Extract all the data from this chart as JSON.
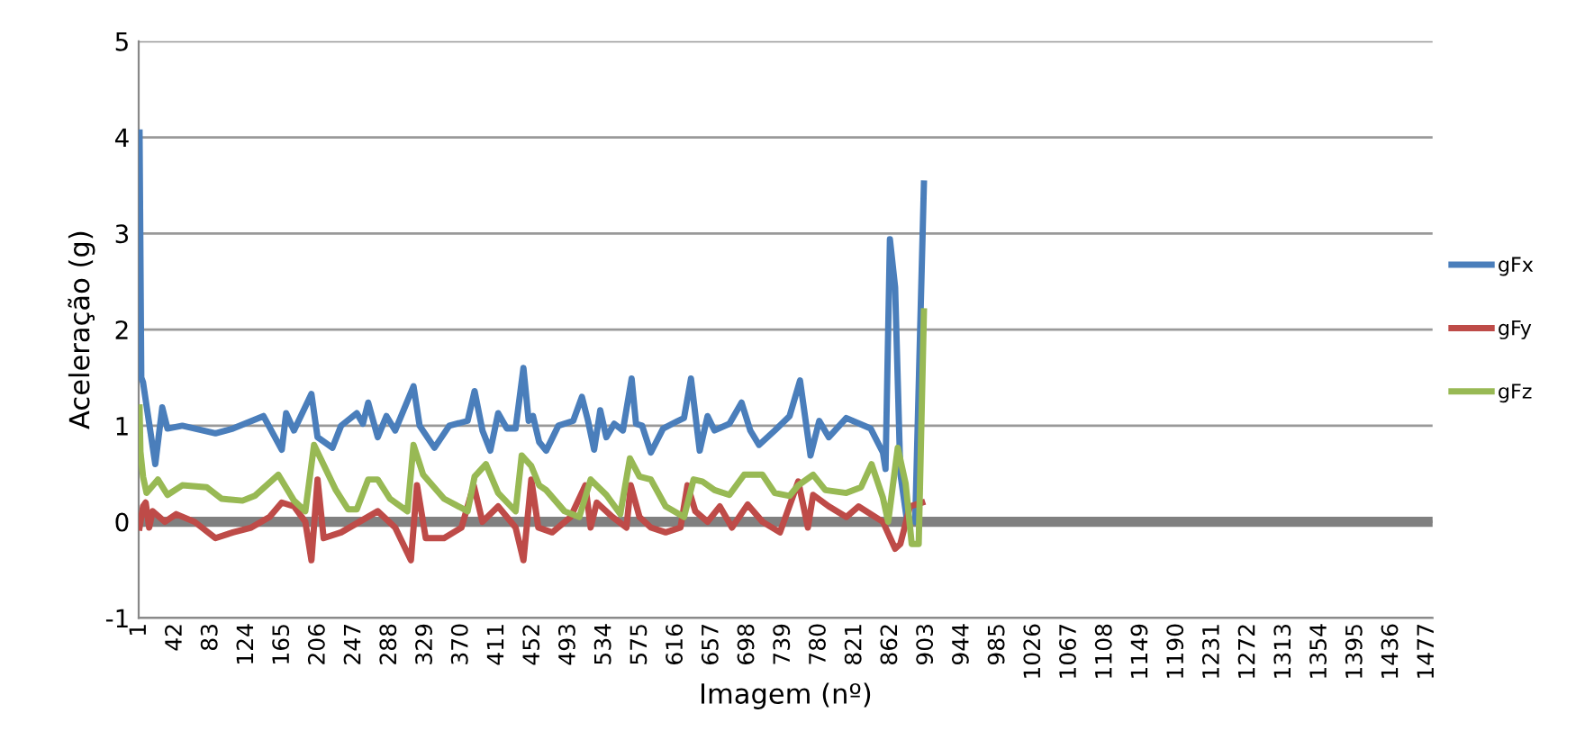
{
  "chart_data": {
    "type": "line",
    "xlabel": "Imagem (nº)",
    "ylabel": "Aceleração (g)",
    "xlim": [
      0,
      1483
    ],
    "xticks": [
      1,
      42,
      83,
      124,
      165,
      206,
      247,
      288,
      329,
      370,
      411,
      452,
      493,
      534,
      575,
      616,
      657,
      698,
      739,
      780,
      821,
      862,
      903,
      944,
      985,
      1026,
      1067,
      1108,
      1149,
      1190,
      1231,
      1272,
      1313,
      1354,
      1395,
      1436,
      1477
    ],
    "ylim": [
      -1,
      5
    ],
    "yticks": [
      -1,
      0,
      1,
      2,
      3,
      4,
      5
    ],
    "grid": "y",
    "legend": "right",
    "line_style": "solid",
    "marker": "none",
    "ref_lines": [
      {
        "axis": "y",
        "value": 0,
        "color": "#808080"
      }
    ],
    "series": [
      {
        "name": "gFx",
        "color": "#4a7ebb",
        "x": [
          1,
          3,
          5,
          19,
          27,
          33,
          50,
          88,
          108,
          143,
          164,
          169,
          178,
          198,
          205,
          222,
          232,
          250,
          257,
          263,
          274,
          284,
          294,
          315,
          322,
          339,
          356,
          377,
          385,
          394,
          403,
          412,
          422,
          432,
          441,
          447,
          452,
          459,
          467,
          481,
          498,
          508,
          515,
          522,
          529,
          536,
          545,
          555,
          565,
          570,
          577,
          587,
          601,
          618,
          625,
          633,
          643,
          652,
          660,
          677,
          691,
          701,
          711,
          729,
          746,
          758,
          770,
          780,
          791,
          811,
          839,
          853,
          856,
          861,
          867,
          873,
          880,
          890,
          900
        ],
        "values": [
          4.05,
          1.5,
          1.45,
          0.6,
          1.19,
          0.97,
          1.0,
          0.92,
          0.97,
          1.1,
          0.75,
          1.13,
          0.95,
          1.33,
          0.88,
          0.77,
          1.0,
          1.13,
          1.02,
          1.24,
          0.88,
          1.1,
          0.95,
          1.41,
          1.0,
          0.77,
          1.0,
          1.05,
          1.36,
          0.95,
          0.74,
          1.13,
          0.97,
          0.97,
          1.6,
          1.05,
          1.1,
          0.83,
          0.74,
          1.0,
          1.05,
          1.3,
          1.05,
          0.75,
          1.16,
          0.88,
          1.02,
          0.95,
          1.49,
          1.02,
          1.0,
          0.72,
          0.97,
          1.05,
          1.08,
          1.49,
          0.74,
          1.1,
          0.95,
          1.02,
          1.24,
          0.95,
          0.8,
          0.95,
          1.1,
          1.47,
          0.69,
          1.05,
          0.88,
          1.08,
          0.97,
          0.72,
          0.55,
          2.94,
          2.44,
          0.5,
          0.05,
          0.0,
          3.52
        ]
      },
      {
        "name": "gFy",
        "color": "#be4b48",
        "x": [
          1,
          5,
          8,
          12,
          16,
          30,
          43,
          64,
          88,
          108,
          129,
          150,
          164,
          178,
          191,
          198,
          205,
          212,
          232,
          253,
          274,
          294,
          312,
          319,
          329,
          350,
          370,
          384,
          394,
          412,
          432,
          441,
          450,
          458,
          474,
          495,
          512,
          518,
          525,
          543,
          559,
          564,
          574,
          587,
          604,
          621,
          629,
          638,
          652,
          666,
          680,
          698,
          715,
          735,
          756,
          767,
          773,
          791,
          811,
          825,
          853,
          867,
          873,
          884,
          898
        ],
        "values": [
          -0.06,
          0.16,
          0.2,
          -0.06,
          0.11,
          0.0,
          0.08,
          0.0,
          -0.17,
          -0.11,
          -0.06,
          0.05,
          0.2,
          0.16,
          0.0,
          -0.4,
          0.44,
          -0.17,
          -0.11,
          0.0,
          0.11,
          -0.06,
          -0.4,
          0.38,
          -0.17,
          -0.17,
          -0.06,
          0.38,
          0.0,
          0.16,
          -0.06,
          -0.4,
          0.44,
          -0.06,
          -0.11,
          0.05,
          0.38,
          -0.06,
          0.2,
          0.05,
          -0.06,
          0.38,
          0.05,
          -0.06,
          -0.11,
          -0.06,
          0.38,
          0.11,
          0.0,
          0.16,
          -0.06,
          0.18,
          0.0,
          -0.11,
          0.42,
          -0.06,
          0.28,
          0.16,
          0.05,
          0.16,
          0.0,
          -0.28,
          -0.23,
          0.16,
          0.2
        ]
      },
      {
        "name": "gFz",
        "color": "#98b954",
        "x": [
          1,
          2,
          5,
          9,
          22,
          33,
          50,
          78,
          95,
          119,
          133,
          160,
          178,
          191,
          201,
          226,
          240,
          250,
          263,
          274,
          288,
          308,
          315,
          326,
          350,
          377,
          385,
          398,
          412,
          432,
          439,
          450,
          459,
          467,
          488,
          505,
          518,
          536,
          552,
          563,
          574,
          587,
          604,
          625,
          636,
          646,
          660,
          677,
          694,
          715,
          729,
          746,
          756,
          773,
          787,
          811,
          828,
          840,
          853,
          859,
          870,
          879,
          886,
          894,
          900
        ],
        "values": [
          1.19,
          0.73,
          0.47,
          0.3,
          0.44,
          0.28,
          0.38,
          0.36,
          0.24,
          0.22,
          0.27,
          0.49,
          0.22,
          0.11,
          0.8,
          0.33,
          0.13,
          0.13,
          0.44,
          0.44,
          0.24,
          0.11,
          0.8,
          0.49,
          0.24,
          0.11,
          0.47,
          0.6,
          0.3,
          0.11,
          0.69,
          0.58,
          0.38,
          0.33,
          0.11,
          0.05,
          0.44,
          0.28,
          0.08,
          0.66,
          0.47,
          0.44,
          0.16,
          0.05,
          0.44,
          0.42,
          0.33,
          0.28,
          0.49,
          0.49,
          0.3,
          0.27,
          0.38,
          0.49,
          0.33,
          0.3,
          0.36,
          0.6,
          0.25,
          0.0,
          0.77,
          0.4,
          -0.23,
          -0.23,
          2.19
        ]
      }
    ]
  }
}
